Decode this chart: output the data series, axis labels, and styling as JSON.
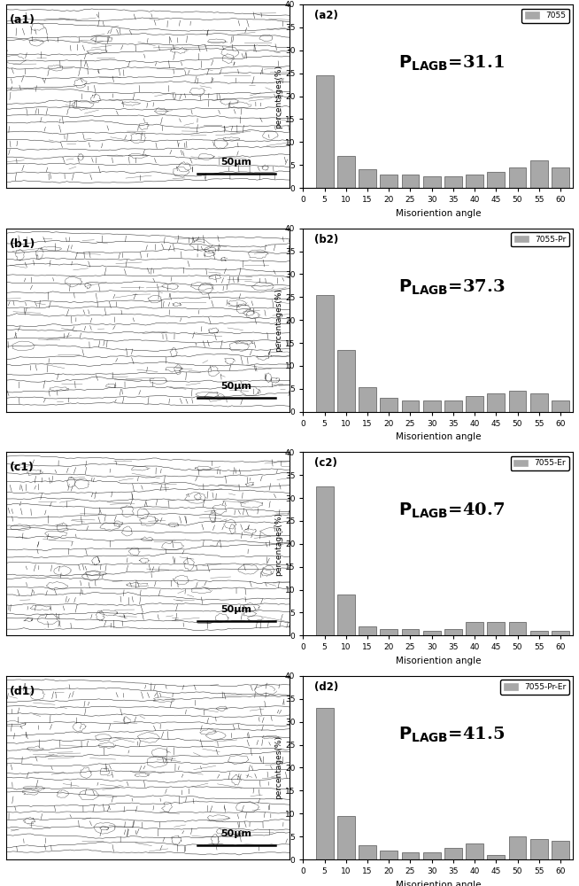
{
  "panels": [
    {
      "label": "a2",
      "legend_label": "7055",
      "plagb_val": "=31.1",
      "ylim": [
        0,
        40
      ],
      "yticks": [
        0,
        5,
        10,
        15,
        20,
        25,
        30,
        35,
        40
      ],
      "bar_values": [
        24.5,
        7.0,
        4.0,
        3.0,
        3.0,
        2.5,
        2.5,
        3.0,
        3.5,
        4.5,
        6.0,
        4.5
      ],
      "bar_color": "#a8a8a8"
    },
    {
      "label": "b2",
      "legend_label": "7055-Pr",
      "plagb_val": "=37.3",
      "ylim": [
        0,
        40
      ],
      "yticks": [
        0,
        5,
        10,
        15,
        20,
        25,
        30,
        35,
        40
      ],
      "bar_values": [
        25.5,
        13.5,
        5.3,
        3.0,
        2.5,
        2.5,
        2.5,
        3.5,
        4.0,
        4.5,
        4.0,
        2.5
      ],
      "bar_color": "#a8a8a8"
    },
    {
      "label": "c2",
      "legend_label": "7055-Er",
      "plagb_val": "=40.7",
      "ylim": [
        0,
        40
      ],
      "yticks": [
        0,
        5,
        10,
        15,
        20,
        25,
        30,
        35,
        40
      ],
      "bar_values": [
        32.5,
        9.0,
        2.0,
        1.5,
        1.5,
        1.0,
        1.5,
        3.0,
        3.0,
        3.0,
        1.0,
        1.0
      ],
      "bar_color": "#a8a8a8"
    },
    {
      "label": "d2",
      "legend_label": "7055-Pr-Er",
      "plagb_val": "=41.5",
      "ylim": [
        0,
        40
      ],
      "yticks": [
        0,
        5,
        10,
        15,
        20,
        25,
        30,
        35,
        40
      ],
      "bar_values": [
        33.0,
        9.5,
        3.0,
        2.0,
        1.5,
        1.5,
        2.5,
        3.5,
        1.0,
        5.0,
        4.5,
        4.0
      ],
      "bar_color": "#a8a8a8"
    }
  ],
  "micro_labels": [
    "a1",
    "b1",
    "c1",
    "d1"
  ],
  "x_ticks": [
    0,
    5,
    10,
    15,
    20,
    25,
    30,
    35,
    40,
    45,
    50,
    55,
    60
  ],
  "xlabel": "Misoriention angle",
  "ylabel": "percentages(%)",
  "bar_width": 4.5,
  "bar_centers": [
    5,
    10,
    15,
    20,
    25,
    30,
    35,
    40,
    45,
    50,
    55,
    60
  ],
  "scale_bar_text": "50μm",
  "bg_color": "#ffffff"
}
